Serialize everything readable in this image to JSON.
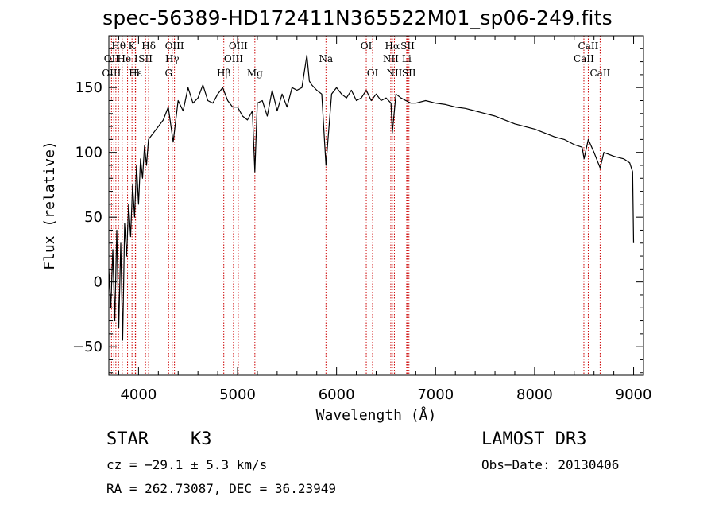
{
  "chart_data": {
    "type": "line",
    "title": "spec-56389-HD172411N365522M01_sp06-249.fits",
    "xlabel": "Wavelength (Å)",
    "ylabel": "Flux (relative)",
    "xlim": [
      3700,
      9100
    ],
    "ylim": [
      -72,
      190
    ],
    "xticks": [
      4000,
      5000,
      6000,
      7000,
      8000,
      9000
    ],
    "xtick_labels": [
      "4000",
      "5000",
      "6000",
      "7000",
      "8000",
      "9000"
    ],
    "yticks": [
      -50,
      0,
      50,
      100,
      150
    ],
    "ytick_labels": [
      "−50",
      "0",
      "50",
      "100",
      "150"
    ],
    "series": [
      {
        "name": "flux",
        "x": [
          3700,
          3720,
          3740,
          3760,
          3780,
          3800,
          3820,
          3840,
          3860,
          3880,
          3900,
          3920,
          3940,
          3960,
          3980,
          4000,
          4020,
          4040,
          4060,
          4080,
          4100,
          4150,
          4200,
          4250,
          4300,
          4350,
          4400,
          4450,
          4500,
          4550,
          4600,
          4650,
          4700,
          4750,
          4800,
          4850,
          4900,
          4950,
          5000,
          5050,
          5100,
          5150,
          5175,
          5200,
          5250,
          5300,
          5350,
          5400,
          5450,
          5500,
          5550,
          5600,
          5650,
          5700,
          5725,
          5750,
          5800,
          5850,
          5893,
          5950,
          6000,
          6050,
          6100,
          6150,
          6200,
          6250,
          6300,
          6350,
          6400,
          6450,
          6500,
          6550,
          6563,
          6600,
          6650,
          6700,
          6750,
          6800,
          6900,
          7000,
          7100,
          7200,
          7300,
          7400,
          7500,
          7600,
          7700,
          7800,
          7900,
          8000,
          8100,
          8200,
          8300,
          8400,
          8480,
          8500,
          8542,
          8600,
          8662,
          8700,
          8800,
          8900,
          8960,
          8990,
          9000
        ],
        "y": [
          10,
          -20,
          25,
          -30,
          40,
          -35,
          30,
          -45,
          45,
          20,
          60,
          35,
          75,
          50,
          90,
          60,
          95,
          80,
          105,
          90,
          110,
          115,
          120,
          125,
          135,
          108,
          140,
          132,
          150,
          138,
          142,
          152,
          140,
          138,
          145,
          150,
          140,
          135,
          135,
          128,
          125,
          132,
          85,
          138,
          140,
          128,
          148,
          132,
          145,
          135,
          150,
          148,
          150,
          175,
          155,
          152,
          148,
          145,
          90,
          145,
          150,
          145,
          142,
          148,
          140,
          142,
          148,
          140,
          145,
          140,
          142,
          138,
          115,
          145,
          142,
          140,
          138,
          138,
          140,
          138,
          137,
          135,
          134,
          132,
          130,
          128,
          125,
          122,
          120,
          118,
          115,
          112,
          110,
          106,
          104,
          95,
          110,
          100,
          88,
          100,
          97,
          95,
          92,
          85,
          30
        ]
      }
    ],
    "spectral_lines": [
      {
        "label": "Hθ",
        "x": 3798,
        "row": 1
      },
      {
        "label": "OII",
        "x": 3727,
        "row": 2
      },
      {
        "label": "OIII",
        "x": 3727,
        "row": 3
      },
      {
        "label": "K",
        "x": 3934,
        "row": 1
      },
      {
        "label": "He I",
        "x": 3889,
        "row": 2
      },
      {
        "label": "Hε",
        "x": 3970,
        "row": 3
      },
      {
        "label": "SII",
        "x": 4070,
        "row": 2
      },
      {
        "label": "H",
        "x": 3968,
        "row": 3
      },
      {
        "label": "Hδ",
        "x": 4102,
        "row": 1
      },
      {
        "label": "OIII",
        "x": 4363,
        "row": 1
      },
      {
        "label": "Hγ",
        "x": 4340,
        "row": 2
      },
      {
        "label": "G",
        "x": 4304,
        "row": 3
      },
      {
        "label": "OIII",
        "x": 5007,
        "row": 1
      },
      {
        "label": "OIII",
        "x": 4959,
        "row": 2
      },
      {
        "label": "Hβ",
        "x": 4861,
        "row": 3
      },
      {
        "label": "Mg",
        "x": 5175,
        "row": 3
      },
      {
        "label": "Na",
        "x": 5893,
        "row": 2
      },
      {
        "label": "OI",
        "x": 6300,
        "row": 1
      },
      {
        "label": "OI",
        "x": 6364,
        "row": 3
      },
      {
        "label": "Hα",
        "x": 6563,
        "row": 1
      },
      {
        "label": "SII",
        "x": 6717,
        "row": 1
      },
      {
        "label": "NII",
        "x": 6548,
        "row": 2
      },
      {
        "label": "Li",
        "x": 6708,
        "row": 2
      },
      {
        "label": "NII",
        "x": 6584,
        "row": 3
      },
      {
        "label": "SII",
        "x": 6731,
        "row": 3
      },
      {
        "label": "CaII",
        "x": 8542,
        "row": 1
      },
      {
        "label": "CaII",
        "x": 8498,
        "row": 2
      },
      {
        "label": "CaII",
        "x": 8662,
        "row": 3
      }
    ],
    "line_marker_wavelengths": [
      3727,
      3750,
      3771,
      3798,
      3835,
      3889,
      3934,
      3968,
      3970,
      4070,
      4102,
      4304,
      4340,
      4363,
      4861,
      4959,
      5007,
      5175,
      5893,
      6300,
      6364,
      6548,
      6563,
      6584,
      6708,
      6717,
      6731,
      8498,
      8542,
      8662
    ],
    "line_marker_color": "#cc0000"
  },
  "info": {
    "object_class": "STAR",
    "subclass": "K3",
    "survey": "LAMOST DR3",
    "cz": "cz = −29.1 ± 5.3 km/s",
    "obs_date": "Obs−Date: 20130406",
    "coords": "RA = 262.73087, DEC =  36.23949"
  }
}
